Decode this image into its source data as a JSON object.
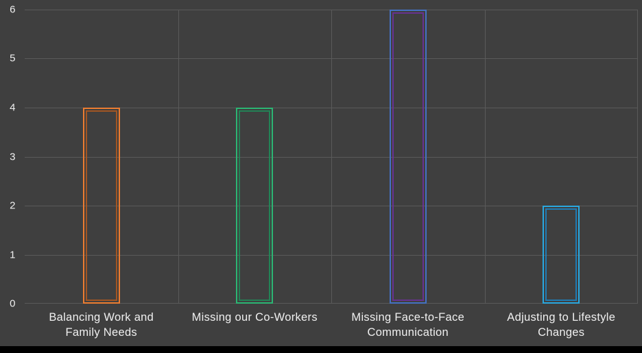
{
  "chart_data": {
    "type": "bar",
    "title": "",
    "xlabel": "",
    "ylabel": "",
    "categories": [
      "Balancing Work and Family Needs",
      "Missing our Co-Workers",
      "Missing Face-to-Face Communication",
      "Adjusting to Lifestyle Changes"
    ],
    "values": [
      4,
      4,
      6,
      2
    ],
    "ylim": [
      0,
      6
    ],
    "yticks": [
      0,
      1,
      2,
      3,
      4,
      5,
      6
    ],
    "grid": true,
    "legend": false,
    "bar_style": "outlined",
    "bar_colors": [
      "#ED7D31",
      "#2BB673",
      "#4472C4",
      "#29A8E0"
    ],
    "bar_inner_colors": [
      "#B55B1F",
      "#1E8E5A",
      "#7030A0",
      "#1B87C9"
    ]
  },
  "theme": {
    "background": "#3F3F3F",
    "gridline": "#5A5A5A",
    "text": "#F0F0F0",
    "footer": "#000000"
  }
}
